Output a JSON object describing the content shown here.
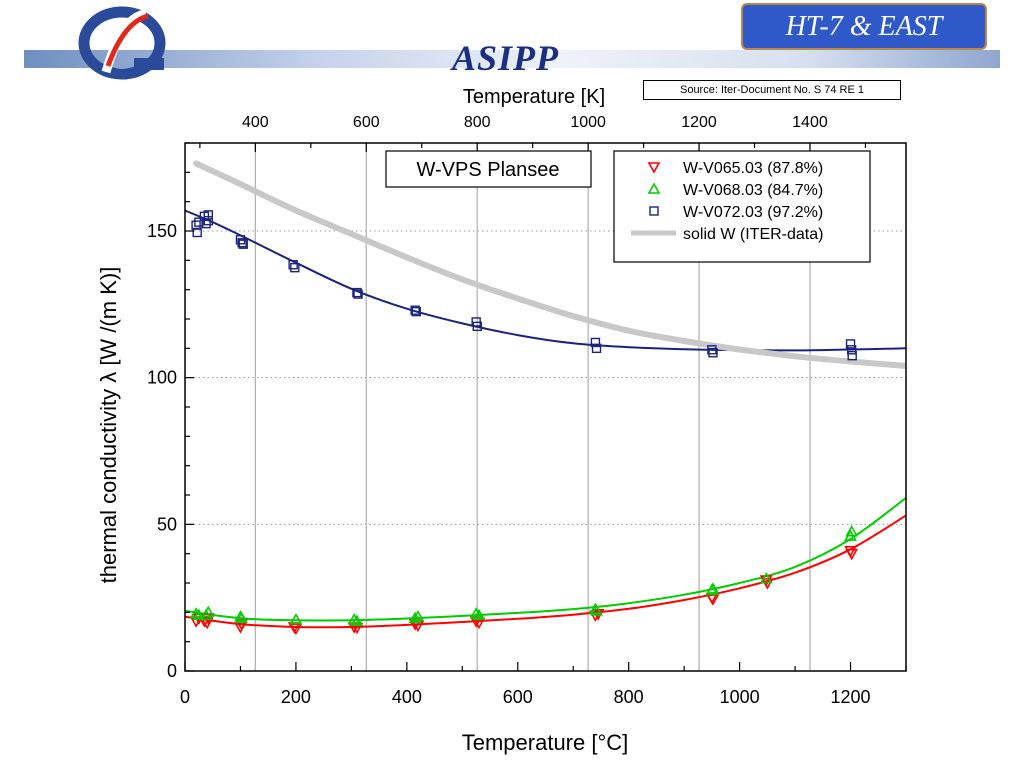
{
  "header": {
    "badge_text": "HT-7 & EAST",
    "org_title": "ASIPP",
    "logo_icon": "asipp-logo-icon",
    "source_note": "Source: Iter-Document No. S 74 RE 1"
  },
  "chart_data": {
    "type": "scatter",
    "inset_label": "W-VPS Plansee",
    "xlabel": "Temperature [°C]",
    "x2label": "Temperature [K]",
    "ylabel": "thermal conductivity λ [W /(m K)]",
    "xlim": [
      0,
      1300
    ],
    "ylim": [
      0,
      180
    ],
    "x_ticks": [
      0,
      200,
      400,
      600,
      800,
      1000,
      1200
    ],
    "y_ticks": [
      0,
      50,
      100,
      150
    ],
    "x2_ticks": [
      400,
      600,
      800,
      1000,
      1200,
      1400
    ],
    "grid": "vertical grid lines at the Kelvin ticks, dotted horizontal grid",
    "legend_position": "top-right",
    "series": [
      {
        "name": "W-V065.03 (87.8%)",
        "marker": "triangle-down",
        "color": "#ff0000",
        "points": [
          [
            20,
            17
          ],
          [
            25,
            18
          ],
          [
            35,
            17
          ],
          [
            40,
            16.5
          ],
          [
            42,
            18
          ],
          [
            100,
            15
          ],
          [
            102,
            16
          ],
          [
            197,
            15
          ],
          [
            200,
            14.5
          ],
          [
            305,
            15
          ],
          [
            310,
            14.8
          ],
          [
            415,
            16
          ],
          [
            420,
            15.5
          ],
          [
            525,
            17
          ],
          [
            530,
            16.5
          ],
          [
            740,
            19
          ],
          [
            745,
            19.5
          ],
          [
            950,
            25
          ],
          [
            952,
            24.5
          ],
          [
            1048,
            31
          ],
          [
            1050,
            30
          ],
          [
            1200,
            41
          ],
          [
            1202,
            40
          ]
        ],
        "fit": [
          [
            0,
            18.5
          ],
          [
            100,
            16
          ],
          [
            200,
            15
          ],
          [
            300,
            15
          ],
          [
            400,
            15.7
          ],
          [
            500,
            16.7
          ],
          [
            600,
            17.8
          ],
          [
            700,
            19.2
          ],
          [
            800,
            21.2
          ],
          [
            900,
            24.2
          ],
          [
            1000,
            28.2
          ],
          [
            1100,
            33.5
          ],
          [
            1200,
            41.5
          ],
          [
            1300,
            53
          ]
        ]
      },
      {
        "name": "W-V068.03 (84.7%)",
        "marker": "triangle-up",
        "color": "#00cc00",
        "points": [
          [
            20,
            19.5
          ],
          [
            25,
            19
          ],
          [
            38,
            19
          ],
          [
            42,
            20
          ],
          [
            100,
            18.5
          ],
          [
            102,
            18
          ],
          [
            200,
            17.5
          ],
          [
            305,
            17.5
          ],
          [
            310,
            17
          ],
          [
            415,
            18
          ],
          [
            420,
            18.5
          ],
          [
            525,
            19.5
          ],
          [
            530,
            19
          ],
          [
            740,
            21
          ],
          [
            742,
            20.5
          ],
          [
            950,
            27.5
          ],
          [
            952,
            28
          ],
          [
            1048,
            31.5
          ],
          [
            1200,
            46
          ],
          [
            1202,
            47.5
          ]
        ],
        "fit": [
          [
            0,
            20.5
          ],
          [
            100,
            18
          ],
          [
            200,
            17.3
          ],
          [
            300,
            17.3
          ],
          [
            400,
            17.9
          ],
          [
            500,
            18.8
          ],
          [
            600,
            19.8
          ],
          [
            700,
            21.1
          ],
          [
            800,
            23.1
          ],
          [
            900,
            26
          ],
          [
            1000,
            30
          ],
          [
            1100,
            35.5
          ],
          [
            1200,
            45
          ],
          [
            1300,
            59
          ]
        ]
      },
      {
        "name": "W-V072.03 (97.2%)",
        "marker": "square",
        "color": "#1a237e",
        "points": [
          [
            20,
            152
          ],
          [
            22,
            149.5
          ],
          [
            25,
            153
          ],
          [
            35,
            155
          ],
          [
            38,
            152.5
          ],
          [
            42,
            153.5
          ],
          [
            42,
            155.5
          ],
          [
            100,
            147
          ],
          [
            103,
            146
          ],
          [
            105,
            145.5
          ],
          [
            195,
            138.5
          ],
          [
            198,
            137.5
          ],
          [
            310,
            129
          ],
          [
            312,
            128.5
          ],
          [
            415,
            123
          ],
          [
            417,
            122.5
          ],
          [
            525,
            119
          ],
          [
            527,
            117.5
          ],
          [
            740,
            112
          ],
          [
            742,
            110
          ],
          [
            950,
            109.5
          ],
          [
            952,
            108.5
          ],
          [
            1200,
            111.5
          ],
          [
            1202,
            109.5
          ],
          [
            1203,
            107.5
          ]
        ],
        "fit": [
          [
            0,
            157
          ],
          [
            50,
            153
          ],
          [
            100,
            148.5
          ],
          [
            200,
            139.2
          ],
          [
            300,
            130.3
          ],
          [
            400,
            123.5
          ],
          [
            500,
            118.5
          ],
          [
            600,
            114.5
          ],
          [
            700,
            111.7
          ],
          [
            800,
            110.4
          ],
          [
            900,
            109.7
          ],
          [
            1000,
            109.4
          ],
          [
            1100,
            109.3
          ],
          [
            1200,
            109.6
          ],
          [
            1300,
            110
          ]
        ]
      },
      {
        "name": "solid W (ITER-data)",
        "marker": "line",
        "color": "#c8c8c8",
        "line": [
          [
            20,
            173
          ],
          [
            100,
            166
          ],
          [
            200,
            157
          ],
          [
            300,
            149
          ],
          [
            400,
            141
          ],
          [
            500,
            133.5
          ],
          [
            600,
            127
          ],
          [
            700,
            121
          ],
          [
            800,
            116
          ],
          [
            900,
            112.5
          ],
          [
            1000,
            109.6
          ],
          [
            1100,
            107.3
          ],
          [
            1200,
            105.5
          ],
          [
            1300,
            104
          ]
        ]
      }
    ]
  }
}
